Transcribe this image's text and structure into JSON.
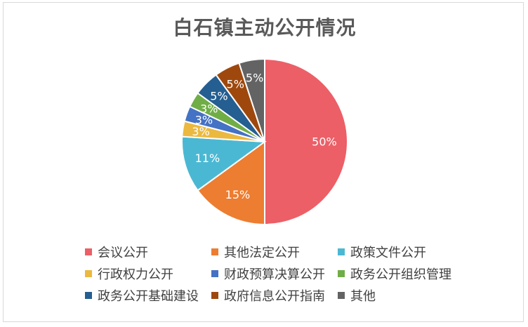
{
  "chart_data": {
    "type": "pie",
    "title": "白石镇主动公开情况",
    "legend_position": "bottom",
    "slices": [
      {
        "label": "会议公开",
        "value": 50,
        "display": "50%",
        "color": "#EC5F67"
      },
      {
        "label": "其他法定公开",
        "value": 15,
        "display": "15%",
        "color": "#ED7D31"
      },
      {
        "label": "政策文件公开",
        "value": 11,
        "display": "11%",
        "color": "#4BB8D3"
      },
      {
        "label": "行政权力公开",
        "value": 3,
        "display": "3%",
        "color": "#EBB93F"
      },
      {
        "label": "财政预算决算公开",
        "value": 3,
        "display": "3%",
        "color": "#4472C4"
      },
      {
        "label": "政务公开组织管理",
        "value": 3,
        "display": "3%",
        "color": "#70AD47"
      },
      {
        "label": "政务公开基础建设",
        "value": 5,
        "display": "5%",
        "color": "#255E91"
      },
      {
        "label": "政府信息公开指南",
        "value": 5,
        "display": "5%",
        "color": "#9E480E"
      },
      {
        "label": "其他",
        "value": 5,
        "display": "5%",
        "color": "#636363"
      }
    ]
  }
}
